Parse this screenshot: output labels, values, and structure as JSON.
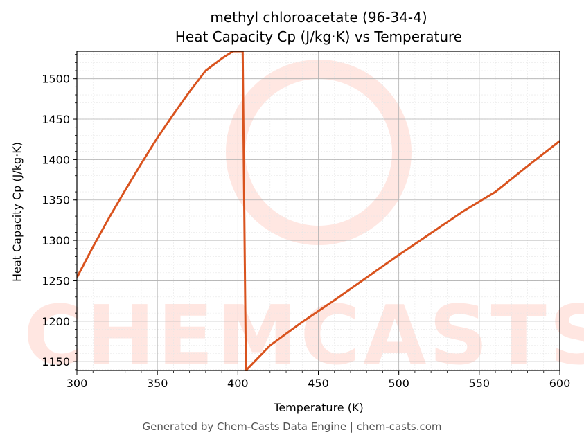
{
  "chart_data": {
    "type": "line",
    "title_line1": "methyl chloroacetate (96-34-4)",
    "title_line2": "Heat Capacity Cp (J/kg·K) vs Temperature",
    "xlabel": "Temperature (K)",
    "ylabel": "Heat Capacity Cp (J/kg·K)",
    "xlim": [
      300,
      600
    ],
    "ylim": [
      1139,
      1534
    ],
    "xticks": [
      300,
      350,
      400,
      450,
      500,
      550,
      600
    ],
    "yticks": [
      1150,
      1200,
      1250,
      1300,
      1350,
      1400,
      1450,
      1500
    ],
    "grid": true,
    "watermark": "CHEMCASTS",
    "series": [
      {
        "color": "#d9531e",
        "x": [
          300,
          310,
          320,
          330,
          340,
          350,
          360,
          370,
          380,
          390,
          397,
          403,
          405,
          420,
          440,
          460,
          480,
          500,
          520,
          540,
          560,
          580,
          600
        ],
        "y": [
          1254,
          1292,
          1328,
          1362,
          1395,
          1427,
          1456,
          1484,
          1510,
          1525,
          1534,
          1534,
          1139,
          1170,
          1199,
          1226,
          1254,
          1282,
          1309,
          1336,
          1360,
          1392,
          1423
        ]
      }
    ]
  },
  "footer": "Generated by Chem-Casts Data Engine | chem-casts.com"
}
